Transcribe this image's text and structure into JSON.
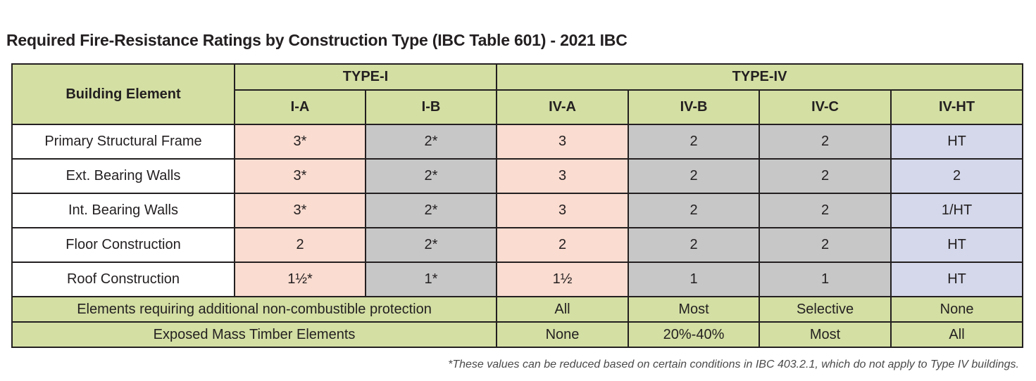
{
  "title": "Required Fire-Resistance Ratings by Construction Type (IBC Table 601) - 2021 IBC",
  "table": {
    "element_header": "Building Element",
    "groups": [
      "TYPE-I",
      "TYPE-IV"
    ],
    "subtypes": [
      "I-A",
      "I-B",
      "IV-A",
      "IV-B",
      "IV-C",
      "IV-HT"
    ],
    "rows": [
      {
        "label": "Primary Structural Frame",
        "values": [
          "3*",
          "2*",
          "3",
          "2",
          "2",
          "HT"
        ]
      },
      {
        "label": "Ext. Bearing Walls",
        "values": [
          "3*",
          "2*",
          "3",
          "2",
          "2",
          "2"
        ]
      },
      {
        "label": "Int. Bearing Walls",
        "values": [
          "3*",
          "2*",
          "3",
          "2",
          "2",
          "1/HT"
        ]
      },
      {
        "label": "Floor Construction",
        "values": [
          "2",
          "2*",
          "2",
          "2",
          "2",
          "HT"
        ]
      },
      {
        "label": "Roof Construction",
        "values": [
          "1½*",
          "1*",
          "1½",
          "1",
          "1",
          "HT"
        ]
      }
    ],
    "footer_rows": [
      {
        "label": "Elements requiring additional non-combustible protection",
        "values": [
          "All",
          "Most",
          "Selective",
          "None"
        ]
      },
      {
        "label": "Exposed Mass Timber Elements",
        "values": [
          "None",
          "20%-40%",
          "Most",
          "All"
        ]
      }
    ],
    "colors": {
      "header": "#d3dfa3",
      "type_i_a": "#fadcd0",
      "gray": "#c7c7c7",
      "iv_ht": "#d4d8ea"
    }
  },
  "footnote": "*These values can be reduced based on certain conditions in IBC 403.2.1, which do not apply to Type IV buildings."
}
